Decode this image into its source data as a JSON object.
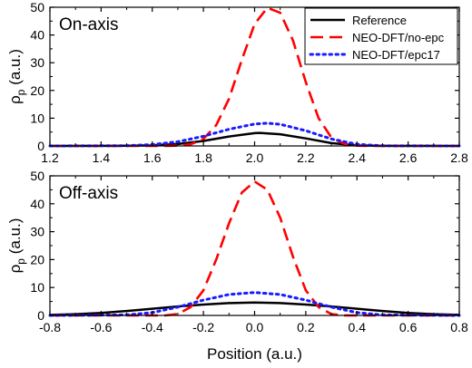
{
  "chart_data": [
    {
      "type": "line",
      "panel_label": "On-axis",
      "xlim": [
        1.2,
        2.8
      ],
      "ylim": [
        0,
        50
      ],
      "xticks": [
        "1.2",
        "1.4",
        "1.6",
        "1.8",
        "2.0",
        "2.2",
        "2.4",
        "2.6",
        "2.8"
      ],
      "yticks": [
        "0",
        "10",
        "20",
        "30",
        "40",
        "50"
      ],
      "xlabel": "",
      "ylabel": "ρp (a.u.)",
      "legend_position": "top-right",
      "series": [
        {
          "name": "Reference",
          "color": "#000000",
          "style": "solid",
          "x": [
            1.2,
            1.5,
            1.6,
            1.7,
            1.8,
            1.9,
            2.0,
            2.02,
            2.1,
            2.2,
            2.3,
            2.4,
            2.5,
            2.8
          ],
          "y": [
            0,
            0.05,
            0.2,
            0.7,
            1.8,
            3.4,
            4.6,
            4.7,
            4.2,
            2.7,
            1.0,
            0.2,
            0.03,
            0
          ]
        },
        {
          "name": "NEO-DFT/no-epc",
          "color": "#ff0000",
          "style": "dashed",
          "x": [
            1.2,
            1.65,
            1.7,
            1.75,
            1.8,
            1.85,
            1.9,
            1.95,
            2.0,
            2.05,
            2.1,
            2.15,
            2.2,
            2.25,
            2.3,
            2.35,
            2.4,
            2.45,
            2.8
          ],
          "y": [
            0,
            0,
            0.1,
            0.6,
            2.5,
            7.5,
            17,
            31,
            44,
            49.8,
            48,
            38,
            23,
            10,
            3,
            0.8,
            0.1,
            0,
            0
          ]
        },
        {
          "name": "NEO-DFT/epc17",
          "color": "#1a1aff",
          "style": "dotted",
          "x": [
            1.2,
            1.5,
            1.6,
            1.7,
            1.8,
            1.9,
            2.0,
            2.05,
            2.1,
            2.2,
            2.3,
            2.4,
            2.5,
            2.8
          ],
          "y": [
            0,
            0.1,
            0.5,
            1.5,
            3.5,
            6.0,
            7.9,
            8.2,
            7.8,
            5.5,
            2.5,
            0.6,
            0.05,
            0
          ]
        }
      ]
    },
    {
      "type": "line",
      "panel_label": "Off-axis",
      "xlim": [
        -0.8,
        0.8
      ],
      "ylim": [
        0,
        50
      ],
      "xticks": [
        "-0.8",
        "-0.6",
        "-0.4",
        "-0.2",
        "0.0",
        "0.2",
        "0.4",
        "0.6",
        "0.8"
      ],
      "yticks": [
        "0",
        "10",
        "20",
        "30",
        "40",
        "50"
      ],
      "xlabel": "Position (a.u.)",
      "ylabel": "ρp (a.u.)",
      "series": [
        {
          "name": "Reference",
          "color": "#000000",
          "style": "solid",
          "x": [
            -0.8,
            -0.7,
            -0.6,
            -0.5,
            -0.4,
            -0.3,
            -0.2,
            -0.1,
            0.0,
            0.1,
            0.2,
            0.3,
            0.4,
            0.5,
            0.6,
            0.7,
            0.8
          ],
          "y": [
            0.2,
            0.45,
            0.9,
            1.6,
            2.4,
            3.2,
            3.9,
            4.4,
            4.6,
            4.4,
            3.9,
            3.2,
            2.4,
            1.6,
            0.9,
            0.45,
            0.2
          ]
        },
        {
          "name": "NEO-DFT/no-epc",
          "color": "#ff0000",
          "style": "dashed",
          "x": [
            -0.8,
            -0.35,
            -0.3,
            -0.25,
            -0.2,
            -0.15,
            -0.1,
            -0.05,
            0.0,
            0.05,
            0.1,
            0.15,
            0.2,
            0.25,
            0.3,
            0.35,
            0.8
          ],
          "y": [
            0,
            0,
            0.5,
            3,
            9,
            20,
            33,
            44,
            48,
            45,
            35,
            21,
            9,
            3,
            0.5,
            0,
            0
          ]
        },
        {
          "name": "NEO-DFT/epc17",
          "color": "#1a1aff",
          "style": "dotted",
          "x": [
            -0.8,
            -0.5,
            -0.4,
            -0.3,
            -0.2,
            -0.1,
            0.0,
            0.1,
            0.2,
            0.3,
            0.4,
            0.5,
            0.8
          ],
          "y": [
            0,
            0.2,
            1.0,
            3.0,
            5.5,
            7.5,
            8.2,
            7.5,
            5.5,
            3.0,
            1.0,
            0.2,
            0
          ]
        }
      ]
    }
  ]
}
